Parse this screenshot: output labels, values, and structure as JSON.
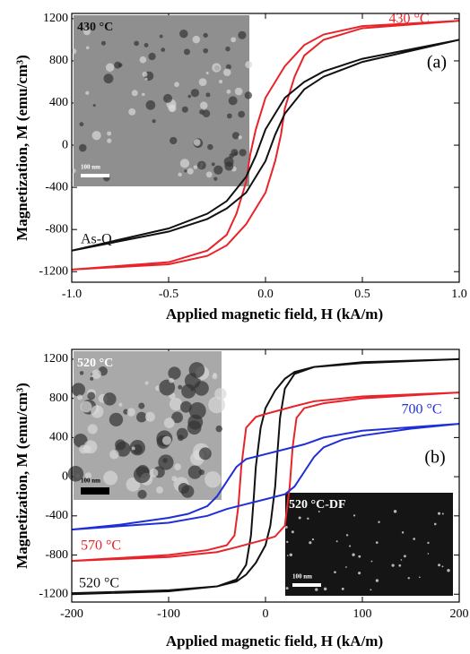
{
  "chart_data": [
    {
      "type": "line",
      "panel_label": "(a)",
      "xlabel": "Applied magnetic field, H (kA/m)",
      "ylabel": "Magnetization, M (emu/cm³)",
      "xlim": [
        -1,
        1
      ],
      "ylim": [
        -1300,
        1250
      ],
      "xticks": [
        {
          "value": -1,
          "label": "-1.0"
        },
        -0.5,
        {
          "value": 0,
          "label": "0.0"
        },
        0.5,
        {
          "value": 1,
          "label": "1.0"
        }
      ],
      "yticks": [
        -1200,
        -800,
        -400,
        0,
        400,
        800,
        1200
      ],
      "series": [
        {
          "name": "430 °C",
          "color": "#e8242a",
          "x": [
            -1,
            -0.5,
            -0.3,
            -0.2,
            -0.1,
            0,
            0.05,
            0.08,
            0.1,
            0.15,
            0.2,
            0.3,
            0.5,
            1,
            0.5,
            0.3,
            0.2,
            0.1,
            0,
            -0.05,
            -0.08,
            -0.1,
            -0.15,
            -0.2,
            -0.3,
            -0.5,
            -1
          ],
          "values": [
            -1180,
            -1130,
            -1050,
            -950,
            -750,
            -450,
            -150,
            100,
            350,
            650,
            850,
            1000,
            1110,
            1180,
            1130,
            1050,
            950,
            750,
            450,
            150,
            -100,
            -350,
            -650,
            -850,
            -1000,
            -1110,
            -1180
          ]
        },
        {
          "name": "As-Q",
          "color": "#111111",
          "x": [
            -1,
            -0.5,
            -0.3,
            -0.2,
            -0.1,
            -0.05,
            0,
            0.03,
            0.05,
            0.1,
            0.2,
            0.3,
            0.5,
            1,
            0.5,
            0.3,
            0.2,
            0.1,
            0.05,
            0,
            -0.03,
            -0.05,
            -0.1,
            -0.2,
            -0.3,
            -0.5,
            -1
          ],
          "values": [
            -1000,
            -820,
            -700,
            -600,
            -450,
            -300,
            -150,
            0,
            100,
            300,
            530,
            650,
            790,
            1000,
            820,
            700,
            600,
            450,
            300,
            150,
            0,
            -100,
            -300,
            -530,
            -650,
            -790,
            -1000
          ]
        }
      ],
      "insets": [
        {
          "label": "430 °C",
          "scale_label": "100 nm"
        }
      ]
    },
    {
      "type": "line",
      "panel_label": "(b)",
      "xlabel": "Applied magnetic field, H (kA/m)",
      "ylabel": "Magnetization, M (emu/cm³)",
      "xlim": [
        -200,
        200
      ],
      "ylim": [
        -1280,
        1300
      ],
      "xticks": [
        -200,
        -100,
        0,
        100,
        200
      ],
      "yticks": [
        -1200,
        -800,
        -400,
        0,
        400,
        800,
        1200
      ],
      "series": [
        {
          "name": "520 °C",
          "color": "#111111",
          "x": [
            -200,
            -100,
            -50,
            -30,
            -20,
            -10,
            0,
            5,
            10,
            12,
            15,
            20,
            30,
            50,
            100,
            200,
            100,
            50,
            30,
            20,
            10,
            0,
            -5,
            -10,
            -12,
            -15,
            -20,
            -30,
            -50,
            -100,
            -200
          ],
          "values": [
            -1190,
            -1160,
            -1120,
            -1070,
            -1000,
            -880,
            -700,
            -500,
            -100,
            200,
            600,
            900,
            1050,
            1120,
            1170,
            1200,
            1160,
            1120,
            1070,
            1000,
            880,
            700,
            500,
            100,
            -200,
            -600,
            -900,
            -1050,
            -1120,
            -1170,
            -1200
          ]
        },
        {
          "name": "570 °C",
          "color": "#e8242a",
          "x": [
            -200,
            -100,
            -50,
            -30,
            0,
            10,
            20,
            25,
            28,
            32,
            40,
            60,
            100,
            200,
            100,
            50,
            30,
            0,
            -10,
            -20,
            -25,
            -28,
            -32,
            -40,
            -60,
            -100,
            -200
          ],
          "values": [
            -860,
            -820,
            -770,
            -720,
            -640,
            -610,
            -500,
            -100,
            300,
            600,
            700,
            750,
            800,
            860,
            820,
            770,
            720,
            640,
            610,
            500,
            100,
            -300,
            -600,
            -700,
            -750,
            -800,
            -860
          ]
        },
        {
          "name": "700 °C",
          "color": "#1f2fd8",
          "x": [
            -200,
            -100,
            -60,
            -40,
            -20,
            0,
            20,
            30,
            40,
            50,
            60,
            80,
            100,
            150,
            200,
            100,
            60,
            40,
            20,
            0,
            -20,
            -30,
            -40,
            -50,
            -60,
            -80,
            -100,
            -150,
            -200
          ],
          "values": [
            -540,
            -470,
            -400,
            -330,
            -280,
            -230,
            -180,
            -100,
            50,
            200,
            300,
            380,
            420,
            490,
            540,
            470,
            400,
            330,
            280,
            230,
            180,
            100,
            -50,
            -200,
            -300,
            -380,
            -420,
            -490,
            -540
          ]
        }
      ],
      "insets": [
        {
          "label": "520 °C",
          "scale_label": "100 nm"
        },
        {
          "label": "520 °C-DF",
          "scale_label": "100 nm"
        }
      ]
    }
  ]
}
